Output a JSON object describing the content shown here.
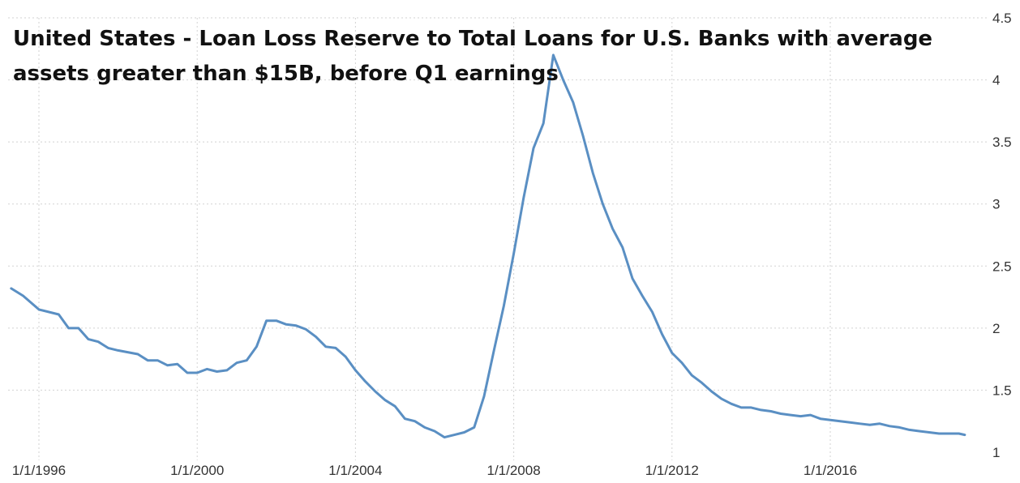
{
  "chart_data": {
    "type": "line",
    "title": "United States - Loan Loss Reserve to Total Loans for U.S. Banks with average assets greater than $15B, before Q1 earnings",
    "title_lines": [
      "United States - Loan Loss Reserve to Total Loans for U.S. Banks with average",
      "assets greater than $15B, before Q1 earnings"
    ],
    "xlabel": "",
    "ylabel": "",
    "x_tick_labels": [
      "1/1/1996",
      "1/1/2000",
      "1/1/2004",
      "1/1/2008",
      "1/1/2012",
      "1/1/2016"
    ],
    "x_tick_values": [
      1996,
      2000,
      2004,
      2008,
      2012,
      2016
    ],
    "y_tick_labels": [
      "1",
      "1.5",
      "2",
      "2.5",
      "3",
      "3.5",
      "4",
      "4.5"
    ],
    "y_tick_values": [
      1,
      1.5,
      2,
      2.5,
      3,
      3.5,
      4,
      4.5
    ],
    "xlim": [
      1995.25,
      2019.5
    ],
    "ylim": [
      1,
      4.5
    ],
    "grid": true,
    "legend": "none",
    "line_color": "#5a8fc3",
    "series": [
      {
        "x": [
          1995.3,
          1995.6,
          1996.0,
          1996.5,
          1996.75,
          1997.0,
          1997.25,
          1997.5,
          1997.75,
          1998.0,
          1998.5,
          1998.75,
          1999.0,
          1999.25,
          1999.5,
          1999.75,
          2000.0,
          2000.25,
          2000.5,
          2000.75,
          2001.0,
          2001.25,
          2001.5,
          2001.75,
          2002.0,
          2002.25,
          2002.5,
          2002.75,
          2003.0,
          2003.25,
          2003.5,
          2003.75,
          2004.0,
          2004.25,
          2004.5,
          2004.75,
          2005.0,
          2005.25,
          2005.5,
          2005.75,
          2006.0,
          2006.25,
          2006.5,
          2006.75,
          2007.0,
          2007.25,
          2007.5,
          2007.75,
          2008.0,
          2008.25,
          2008.5,
          2008.75,
          2009.0,
          2009.25,
          2009.5,
          2009.75,
          2010.0,
          2010.25,
          2010.5,
          2010.75,
          2011.0,
          2011.25,
          2011.5,
          2011.75,
          2012.0,
          2012.25,
          2012.5,
          2012.75,
          2013.0,
          2013.25,
          2013.5,
          2013.75,
          2014.0,
          2014.25,
          2014.5,
          2014.75,
          2015.0,
          2015.25,
          2015.5,
          2015.75,
          2016.0,
          2016.25,
          2016.5,
          2016.75,
          2017.0,
          2017.25,
          2017.5,
          2017.75,
          2018.0,
          2018.25,
          2018.5,
          2018.75,
          2019.0,
          2019.25,
          2019.4
        ],
        "values": [
          2.32,
          2.26,
          2.15,
          2.11,
          2.0,
          2.0,
          1.91,
          1.89,
          1.84,
          1.82,
          1.79,
          1.74,
          1.74,
          1.7,
          1.71,
          1.64,
          1.64,
          1.67,
          1.65,
          1.66,
          1.72,
          1.74,
          1.85,
          2.06,
          2.06,
          2.03,
          2.02,
          1.99,
          1.93,
          1.85,
          1.84,
          1.77,
          1.66,
          1.57,
          1.49,
          1.42,
          1.37,
          1.27,
          1.25,
          1.2,
          1.17,
          1.12,
          1.14,
          1.16,
          1.2,
          1.45,
          1.82,
          2.18,
          2.6,
          3.05,
          3.45,
          3.65,
          4.2,
          4.0,
          3.82,
          3.55,
          3.25,
          3.0,
          2.8,
          2.65,
          2.4,
          2.26,
          2.13,
          1.95,
          1.8,
          1.72,
          1.62,
          1.56,
          1.49,
          1.43,
          1.39,
          1.36,
          1.36,
          1.34,
          1.33,
          1.31,
          1.3,
          1.29,
          1.3,
          1.27,
          1.26,
          1.25,
          1.24,
          1.23,
          1.22,
          1.23,
          1.21,
          1.2,
          1.18,
          1.17,
          1.16,
          1.15,
          1.15,
          1.15,
          1.14
        ]
      }
    ]
  }
}
